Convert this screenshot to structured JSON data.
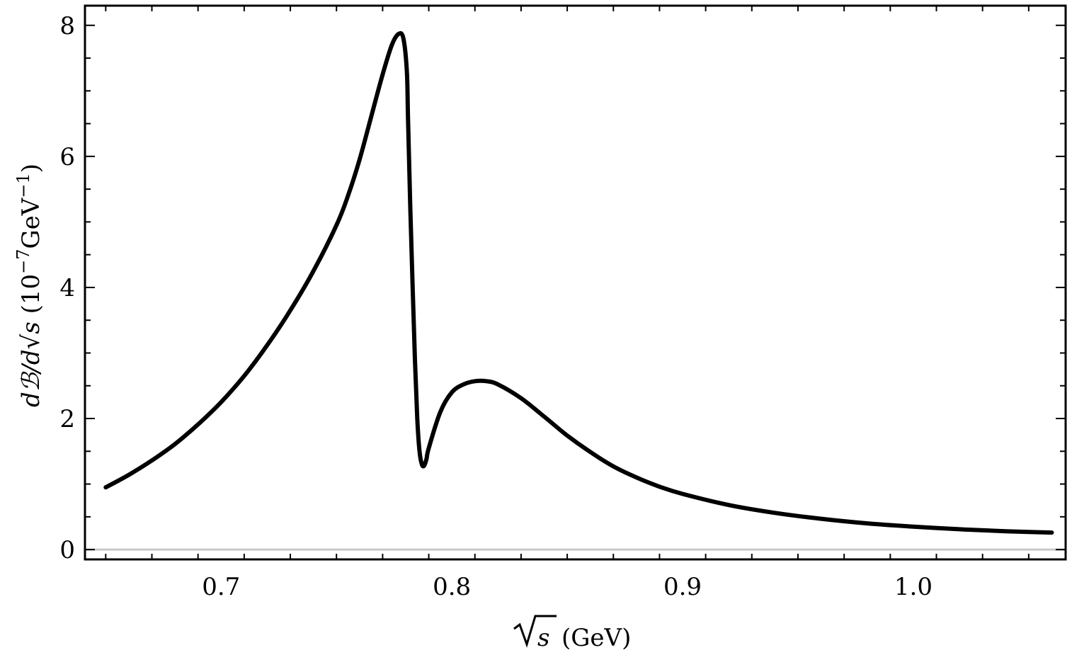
{
  "chart_data": {
    "type": "line",
    "title": "",
    "xlabel": {
      "var": "s",
      "unit": "(GeV)"
    },
    "ylabel": {
      "numerator": "dℬ/d",
      "var": "s",
      "unit_prefix": "(10",
      "unit_exp": "−7",
      "unit_mid": "GeV",
      "unit_exp2": "−1",
      "unit_suffix": ")"
    },
    "xlim": [
      0.641,
      1.066
    ],
    "ylim": [
      -0.15,
      8.3
    ],
    "x_ticks": [
      {
        "value": 0.7,
        "label": "0.7"
      },
      {
        "value": 0.8,
        "label": "0.8"
      },
      {
        "value": 0.9,
        "label": "0.9"
      },
      {
        "value": 1.0,
        "label": "1.0"
      }
    ],
    "y_ticks": [
      {
        "value": 0,
        "label": "0"
      },
      {
        "value": 2,
        "label": "2"
      },
      {
        "value": 4,
        "label": "4"
      },
      {
        "value": 6,
        "label": "6"
      },
      {
        "value": 8,
        "label": "8"
      }
    ],
    "grid": false,
    "reference_line_y": 0,
    "series": [
      {
        "color": "#000000",
        "x": [
          0.65,
          0.66,
          0.67,
          0.68,
          0.69,
          0.7,
          0.71,
          0.72,
          0.73,
          0.74,
          0.75,
          0.755,
          0.76,
          0.765,
          0.77,
          0.774,
          0.777,
          0.779,
          0.7805,
          0.781,
          0.782,
          0.783,
          0.784,
          0.785,
          0.786,
          0.787,
          0.788,
          0.789,
          0.79,
          0.795,
          0.8,
          0.805,
          0.81,
          0.815,
          0.82,
          0.83,
          0.84,
          0.85,
          0.86,
          0.87,
          0.88,
          0.89,
          0.9,
          0.92,
          0.94,
          0.96,
          0.98,
          1.0,
          1.02,
          1.04,
          1.06
        ],
        "y": [
          0.95,
          1.14,
          1.36,
          1.61,
          1.91,
          2.25,
          2.65,
          3.12,
          3.65,
          4.25,
          4.95,
          5.4,
          5.95,
          6.6,
          7.25,
          7.7,
          7.87,
          7.8,
          7.3,
          6.6,
          5.2,
          4.0,
          2.9,
          2.0,
          1.5,
          1.3,
          1.28,
          1.38,
          1.55,
          2.1,
          2.4,
          2.52,
          2.57,
          2.57,
          2.52,
          2.31,
          2.03,
          1.74,
          1.49,
          1.27,
          1.1,
          0.96,
          0.85,
          0.68,
          0.56,
          0.47,
          0.4,
          0.35,
          0.31,
          0.28,
          0.26
        ]
      }
    ]
  }
}
